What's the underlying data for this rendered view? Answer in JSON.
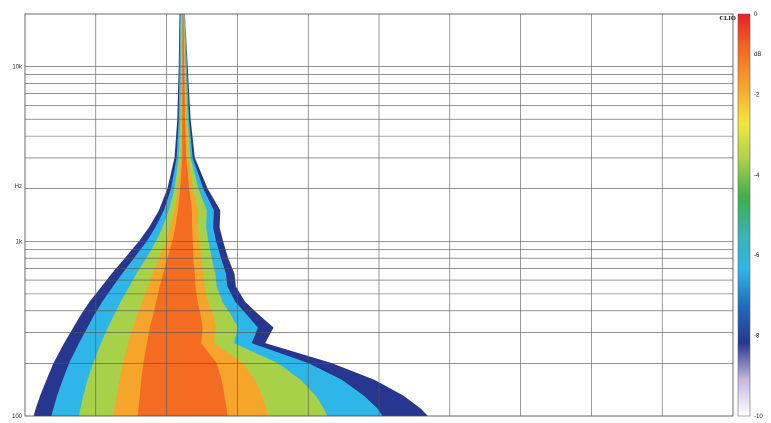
{
  "chart_data": {
    "type": "heatmap",
    "subtype": "cumulative spectral decay (wavelet)",
    "title": "",
    "xlabel": "",
    "ylabel": "Hz",
    "y_scale": "log",
    "ylim": [
      100,
      20000
    ],
    "y_tick_labels": [
      {
        "value": 100,
        "label": "100"
      },
      {
        "value": 1000,
        "label": "1k"
      },
      {
        "value": 10000,
        "label": "10k"
      }
    ],
    "grid": true,
    "x_gridline_count": 10,
    "colorbar": {
      "brand": "CLIO",
      "unit": "dB",
      "range": [
        -10,
        0
      ],
      "tick_labels": [
        {
          "value": 0,
          "label": "0"
        },
        {
          "value": -2,
          "label": "-2"
        },
        {
          "value": -4,
          "label": "-4"
        },
        {
          "value": -6,
          "label": "-6"
        },
        {
          "value": -8,
          "label": "-8"
        },
        {
          "value": -10,
          "label": "-10"
        }
      ],
      "colors": [
        "#e8212a",
        "#f46c22",
        "#f6a52b",
        "#f2e83c",
        "#a8d14a",
        "#3fae49",
        "#3ab3b0",
        "#2fb6e8",
        "#1f6ac0",
        "#27378f",
        "#c3b6dc",
        "#ffffff"
      ]
    },
    "decay_profile": {
      "frequencies_hz": [
        20000,
        10000,
        5000,
        3000,
        2000,
        1500,
        1200,
        1000,
        800,
        650,
        550,
        450,
        380,
        320,
        260,
        200,
        160,
        130,
        110,
        100
      ],
      "contour_db": [
        -10,
        -8,
        -6,
        -4,
        -2,
        -1
      ],
      "left_edges": [
        [
          0.218,
          0.217,
          0.214,
          0.209,
          0.198,
          0.184,
          0.169,
          0.154,
          0.132,
          0.112,
          0.097,
          0.079,
          0.066,
          0.054,
          0.041,
          0.024,
          0.012,
          0.004,
          0.0,
          0.0
        ],
        [
          0.219,
          0.218,
          0.216,
          0.212,
          0.202,
          0.19,
          0.176,
          0.162,
          0.142,
          0.123,
          0.109,
          0.092,
          0.08,
          0.069,
          0.056,
          0.041,
          0.031,
          0.022,
          0.016,
          0.013
        ],
        [
          0.22,
          0.219,
          0.218,
          0.215,
          0.207,
          0.197,
          0.185,
          0.173,
          0.155,
          0.138,
          0.125,
          0.11,
          0.099,
          0.089,
          0.077,
          0.063,
          0.054,
          0.046,
          0.041,
          0.038
        ],
        [
          0.221,
          0.221,
          0.22,
          0.218,
          0.212,
          0.204,
          0.195,
          0.186,
          0.172,
          0.158,
          0.148,
          0.136,
          0.127,
          0.118,
          0.108,
          0.097,
          0.089,
          0.083,
          0.079,
          0.077
        ],
        [
          0.222,
          0.222,
          0.222,
          0.221,
          0.217,
          0.212,
          0.206,
          0.2,
          0.19,
          0.181,
          0.174,
          0.166,
          0.16,
          0.153,
          0.146,
          0.139,
          0.134,
          0.13,
          0.127,
          0.126
        ],
        [
          0.223,
          0.223,
          0.223,
          0.223,
          0.22,
          0.217,
          0.213,
          0.209,
          0.202,
          0.196,
          0.191,
          0.186,
          0.182,
          0.177,
          0.173,
          0.168,
          0.165,
          0.163,
          0.161,
          0.16
        ]
      ],
      "right_edges": [
        [
          0.226,
          0.23,
          0.235,
          0.242,
          0.262,
          0.281,
          0.28,
          0.285,
          0.293,
          0.303,
          0.305,
          0.318,
          0.339,
          0.364,
          0.348,
          0.451,
          0.52,
          0.567,
          0.594,
          0.604
        ],
        [
          0.225,
          0.229,
          0.233,
          0.239,
          0.257,
          0.275,
          0.274,
          0.279,
          0.286,
          0.295,
          0.297,
          0.31,
          0.329,
          0.35,
          0.338,
          0.432,
          0.493,
          0.534,
          0.558,
          0.568
        ],
        [
          0.225,
          0.228,
          0.231,
          0.236,
          0.251,
          0.266,
          0.265,
          0.269,
          0.276,
          0.283,
          0.285,
          0.296,
          0.312,
          0.328,
          0.319,
          0.399,
          0.447,
          0.478,
          0.497,
          0.504
        ],
        [
          0.224,
          0.226,
          0.229,
          0.233,
          0.244,
          0.256,
          0.255,
          0.258,
          0.263,
          0.268,
          0.27,
          0.278,
          0.29,
          0.3,
          0.294,
          0.356,
          0.389,
          0.41,
          0.421,
          0.426
        ],
        [
          0.223,
          0.225,
          0.227,
          0.229,
          0.236,
          0.244,
          0.243,
          0.245,
          0.248,
          0.251,
          0.253,
          0.258,
          0.265,
          0.269,
          0.266,
          0.307,
          0.324,
          0.334,
          0.34,
          0.342
        ],
        [
          0.223,
          0.224,
          0.225,
          0.227,
          0.231,
          0.235,
          0.235,
          0.236,
          0.237,
          0.239,
          0.24,
          0.243,
          0.247,
          0.25,
          0.248,
          0.27,
          0.277,
          0.281,
          0.284,
          0.285
        ]
      ]
    }
  }
}
